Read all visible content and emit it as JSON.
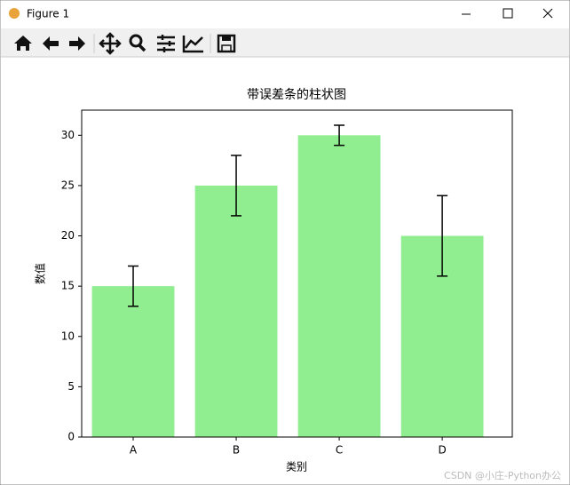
{
  "window": {
    "title": "Figure 1"
  },
  "chart_data": {
    "type": "bar",
    "title": "带误差条的柱状图",
    "x_label": "类别",
    "y_label": "数值",
    "categories": [
      "A",
      "B",
      "C",
      "D"
    ],
    "values": [
      15,
      25,
      30,
      20
    ],
    "errors": [
      2,
      3,
      1,
      4
    ],
    "color": "#90ee90",
    "ylim": [
      0,
      32.5
    ],
    "yticks": [
      0,
      5,
      10,
      15,
      20,
      25,
      30
    ]
  },
  "watermark": "CSDN @小庄-Python办公"
}
